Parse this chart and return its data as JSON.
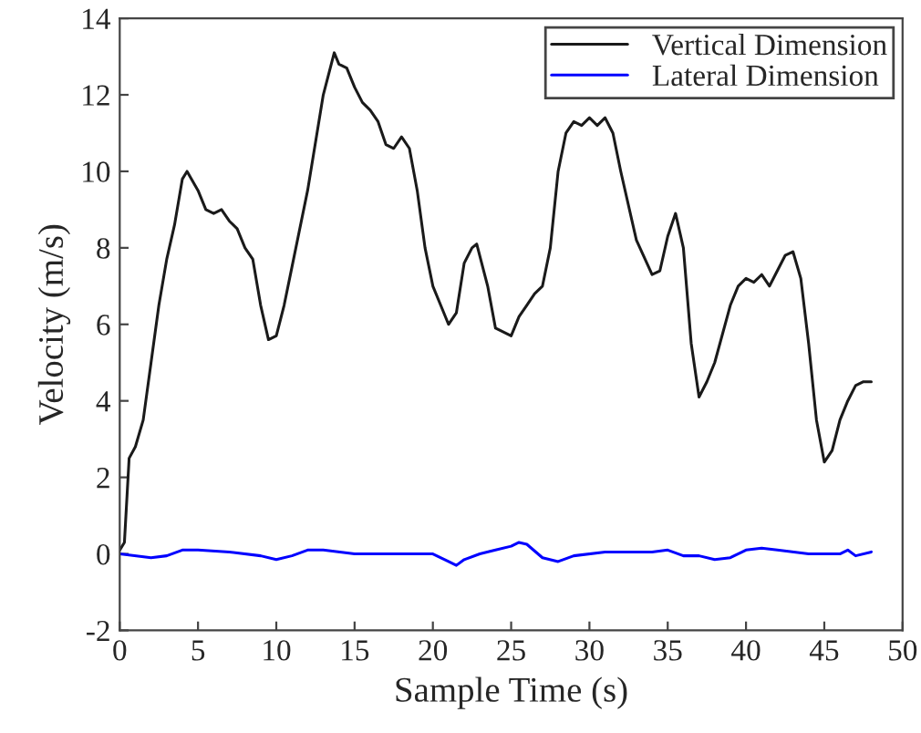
{
  "chart_data": {
    "type": "line",
    "xlabel": "Sample Time (s)",
    "ylabel": "Velocity (m/s)",
    "xlim": [
      0,
      50
    ],
    "xticks": [
      0,
      5,
      10,
      15,
      20,
      25,
      30,
      35,
      40,
      45,
      50
    ],
    "ylim": [
      -2,
      14
    ],
    "yticks": [
      -2,
      0,
      2,
      4,
      6,
      8,
      10,
      12,
      14
    ],
    "grid": false,
    "legend": "top right",
    "marker": "none",
    "line_style": "solid",
    "series": [
      {
        "name": "Vertical Dimension",
        "color": "#1a1a1a",
        "x": [
          0,
          0.3,
          0.6,
          1,
          1.5,
          2,
          2.5,
          3,
          3.5,
          4,
          4.3,
          5,
          5.5,
          6,
          6.5,
          7,
          7.5,
          8,
          8.5,
          9,
          9.5,
          10,
          10.5,
          11,
          12,
          13,
          13.7,
          14,
          14.5,
          15,
          15.5,
          16,
          16.5,
          17,
          17.5,
          18,
          18.5,
          19,
          19.5,
          20,
          20.5,
          21,
          21.5,
          22,
          22.5,
          22.8,
          23.5,
          24,
          24.5,
          25,
          25.5,
          26,
          26.5,
          27,
          27.5,
          28,
          28.5,
          29,
          29.5,
          30,
          30.5,
          31,
          31.5,
          32,
          33,
          34,
          34.5,
          35,
          35.5,
          36,
          36.5,
          37,
          37.5,
          38,
          39,
          39.5,
          40,
          40.5,
          41,
          41.5,
          42,
          42.5,
          43,
          43.5,
          44,
          44.5,
          45,
          45.5,
          46,
          46.5,
          47,
          47.5,
          48
        ],
        "values": [
          0.1,
          0.3,
          2.5,
          2.8,
          3.5,
          5,
          6.5,
          7.7,
          8.6,
          9.8,
          10.0,
          9.5,
          9.0,
          8.9,
          9.0,
          8.7,
          8.5,
          8.0,
          7.7,
          6.5,
          5.6,
          5.7,
          6.5,
          7.5,
          9.5,
          12.0,
          13.1,
          12.8,
          12.7,
          12.2,
          11.8,
          11.6,
          11.3,
          10.7,
          10.6,
          10.9,
          10.6,
          9.5,
          8.0,
          7.0,
          6.5,
          6.0,
          6.3,
          7.6,
          8.0,
          8.1,
          7.0,
          5.9,
          5.8,
          5.7,
          6.2,
          6.5,
          6.8,
          7.0,
          8.0,
          10.0,
          11.0,
          11.3,
          11.2,
          11.4,
          11.2,
          11.4,
          11.0,
          10.0,
          8.2,
          7.3,
          7.4,
          8.3,
          8.9,
          8.0,
          5.5,
          4.1,
          4.5,
          5.0,
          6.5,
          7.0,
          7.2,
          7.1,
          7.3,
          7.0,
          7.4,
          7.8,
          7.9,
          7.2,
          5.5,
          3.5,
          2.4,
          2.7,
          3.5,
          4.0,
          4.4,
          4.5,
          4.5
        ]
      },
      {
        "name": "Lateral Dimension",
        "color": "#0000ff",
        "x": [
          0,
          2,
          3,
          4,
          5,
          7,
          9,
          10,
          11,
          12,
          13,
          15,
          18,
          20,
          21,
          21.5,
          22,
          23,
          24,
          25,
          25.5,
          26,
          27,
          28,
          29,
          31,
          33,
          34,
          35,
          36,
          37,
          38,
          39,
          40,
          41,
          42,
          44,
          46,
          46.5,
          47,
          48
        ],
        "values": [
          0,
          -0.1,
          -0.05,
          0.1,
          0.1,
          0.05,
          -0.05,
          -0.15,
          -0.05,
          0.1,
          0.1,
          0.0,
          0.0,
          0.0,
          -0.2,
          -0.3,
          -0.15,
          0.0,
          0.1,
          0.2,
          0.3,
          0.25,
          -0.1,
          -0.2,
          -0.05,
          0.05,
          0.05,
          0.05,
          0.1,
          -0.05,
          -0.05,
          -0.15,
          -0.1,
          0.1,
          0.15,
          0.1,
          0.0,
          0.0,
          0.1,
          -0.05,
          0.05
        ]
      }
    ]
  }
}
